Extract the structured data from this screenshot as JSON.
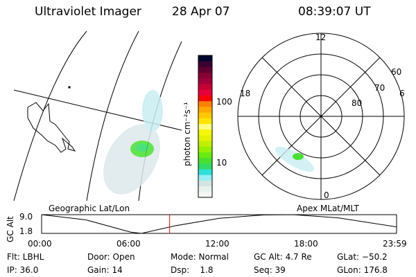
{
  "header": {
    "instrument": "Ultraviolet Imager",
    "date": "28 Apr 07",
    "time": "08:39:07 UT"
  },
  "colorbar": {
    "label": "photon cm⁻²s⁻¹",
    "ticks": [
      "100",
      "10"
    ],
    "colors": [
      "#f4f8f4",
      "#e8f2ec",
      "#d2e4e2",
      "#98eef4",
      "#2ee0d8",
      "#30dc64",
      "#48e030",
      "#68ec10",
      "#98f000",
      "#c0f000",
      "#e4f400",
      "#f4f800",
      "#ffff80",
      "#ffe400",
      "#ffc800",
      "#ffa800",
      "#ff8000",
      "#ff0000",
      "#e8003c",
      "#c80034",
      "#a00038",
      "#880034",
      "#600030",
      "#3c0030",
      "#000830"
    ]
  },
  "polar": {
    "mlt_labels": {
      "top": "12",
      "bottom": "0",
      "left": "18",
      "right": "6"
    },
    "lat_labels": [
      "60",
      "70",
      "80"
    ]
  },
  "altitude_plot": {
    "ylabel": "GC Alt",
    "yticks": [
      "9.0",
      "1.8"
    ],
    "xticks": [
      "00:00",
      "06:00",
      "12:00",
      "18:00",
      "23:59"
    ],
    "left_label": "Geographic Lat/Lon",
    "right_label": "Apex MLat/MLT",
    "current_marker_color": "#ff0000"
  },
  "chart_data": {
    "type": "line",
    "ylabel": "GC Alt",
    "ylim": [
      1.8,
      9.0
    ],
    "x": [
      "00:00",
      "03:00",
      "06:00",
      "06:45",
      "09:00",
      "12:00",
      "15:00",
      "17:00",
      "20:00",
      "23:59"
    ],
    "values": [
      9.0,
      7.0,
      2.3,
      1.8,
      4.7,
      7.6,
      8.9,
      9.0,
      7.8,
      4.3
    ],
    "marker_time": "08:39"
  },
  "footer": {
    "flt": "Flt: LBHL",
    "ip": "IP: 36.0",
    "door": "Door: Open",
    "gain": "Gain: 14",
    "mode": "Mode: Normal",
    "dsp": "Dsp:    1.8",
    "gcalt": "GC Alt: 4.7 Re",
    "seq": "Seq: 39",
    "glat": "GLat: −50.2",
    "glon": "GLon: 176.8"
  }
}
